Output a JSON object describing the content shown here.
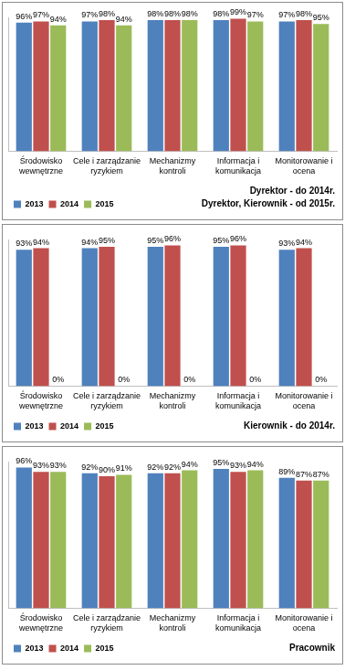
{
  "chart_data": [
    {
      "type": "bar",
      "categories": [
        "Środowisko wewnętrzne",
        "Cele i zarządzanie ryzykiem",
        "Mechanizmy kontroli",
        "Informacja i komunikacja",
        "Monitorowanie i ocena"
      ],
      "series": [
        {
          "name": "2013",
          "color": "#4f81bd",
          "values": [
            96,
            97,
            98,
            98,
            97
          ],
          "value_labels": [
            "96%",
            "97%",
            "98%",
            "98%",
            "97%"
          ]
        },
        {
          "name": "2014",
          "color": "#c0504d",
          "values": [
            97,
            98,
            98,
            99,
            98
          ],
          "value_labels": [
            "97%",
            "98%",
            "98%",
            "99%",
            "98%"
          ]
        },
        {
          "name": "2015",
          "color": "#9bbb59",
          "values": [
            94,
            94,
            98,
            97,
            95
          ],
          "value_labels": [
            "94%",
            "94%",
            "98%",
            "97%",
            "95%"
          ]
        }
      ],
      "ylim": [
        0,
        100
      ],
      "grid": false,
      "legend": "bottom-left",
      "data_labels": true,
      "tick_labels": "x",
      "annotations": [
        "Dyrektor - do 2014r.",
        "Dyrektor, Kierownik - od 2015r."
      ]
    },
    {
      "type": "bar",
      "categories": [
        "Środowisko wewnętrzne",
        "Cele i zarządzanie ryzykiem",
        "Mechanizmy kontroli",
        "Informacja i komunikacja",
        "Monitorowanie i ocena"
      ],
      "series": [
        {
          "name": "2013",
          "color": "#4f81bd",
          "values": [
            93,
            94,
            95,
            95,
            93
          ],
          "value_labels": [
            "93%",
            "94%",
            "95%",
            "95%",
            "93%"
          ]
        },
        {
          "name": "2014",
          "color": "#c0504d",
          "values": [
            94,
            95,
            96,
            96,
            94
          ],
          "value_labels": [
            "94%",
            "95%",
            "96%",
            "96%",
            "94%"
          ]
        },
        {
          "name": "2015",
          "color": "#9bbb59",
          "values": [
            0,
            0,
            0,
            0,
            0
          ],
          "value_labels": [
            "0%",
            "0%",
            "0%",
            "0%",
            "0%"
          ]
        }
      ],
      "ylim": [
        0,
        100
      ],
      "grid": false,
      "legend": "bottom-left",
      "data_labels": true,
      "tick_labels": "x",
      "annotations": [
        "Kierownik - do 2014r."
      ]
    },
    {
      "type": "bar",
      "categories": [
        "Środowisko wewnętrzne",
        "Cele i zarządzanie ryzykiem",
        "Mechanizmy kontroli",
        "Informacja i komunikacja",
        "Monitorowanie i ocena"
      ],
      "series": [
        {
          "name": "2013",
          "color": "#4f81bd",
          "values": [
            96,
            92,
            92,
            95,
            89
          ],
          "value_labels": [
            "96%",
            "92%",
            "92%",
            "95%",
            "89%"
          ]
        },
        {
          "name": "2014",
          "color": "#c0504d",
          "values": [
            93,
            90,
            92,
            93,
            87
          ],
          "value_labels": [
            "93%",
            "90%",
            "92%",
            "93%",
            "87%"
          ]
        },
        {
          "name": "2015",
          "color": "#9bbb59",
          "values": [
            93,
            91,
            94,
            94,
            87
          ],
          "value_labels": [
            "93%",
            "91%",
            "94%",
            "94%",
            "87%"
          ]
        }
      ],
      "ylim": [
        0,
        100
      ],
      "grid": false,
      "legend": "bottom-left",
      "data_labels": true,
      "tick_labels": "x",
      "annotations": [
        "Pracownik"
      ]
    }
  ]
}
